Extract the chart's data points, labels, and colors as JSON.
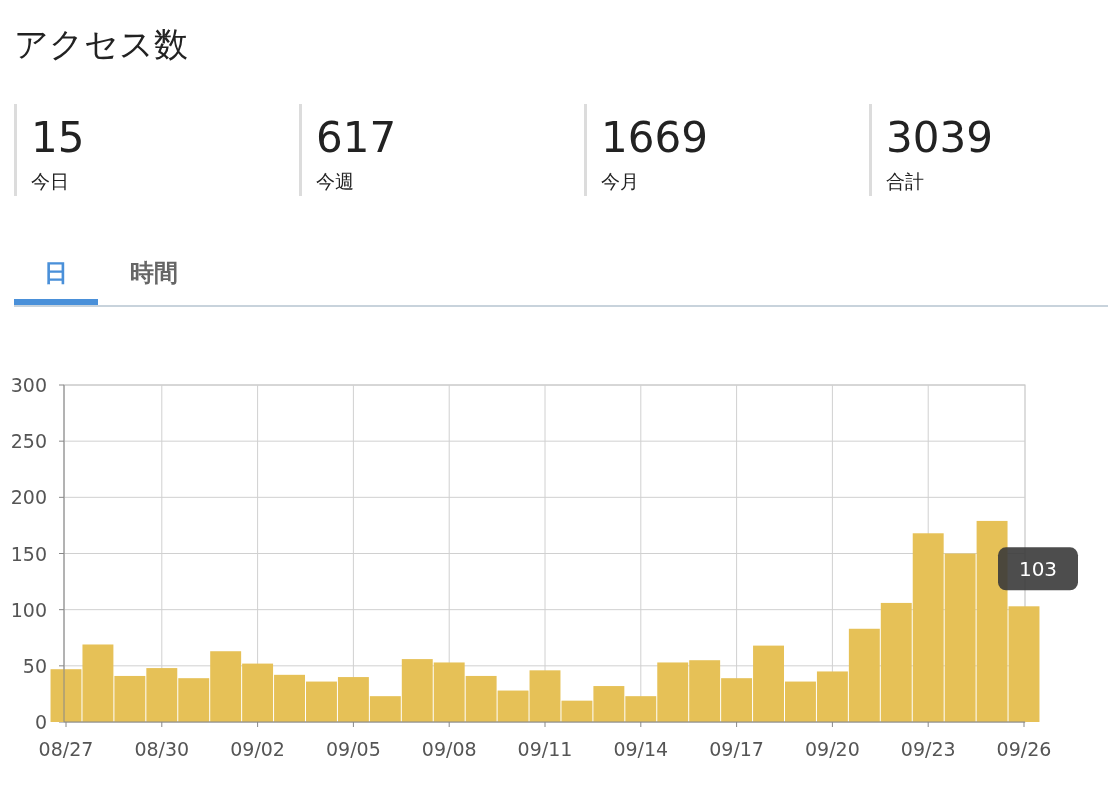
{
  "chart_data": [
    {
      "type": "other",
      "title": "アクセス数",
      "annotations": [
        "15",
        "今日",
        "617",
        "今週",
        "1669",
        "今月",
        "3039",
        "合計"
      ]
    },
    {
      "type": "bar",
      "annotations": [
        "日",
        "時間",
        {
          "text": "103",
          "x": "09/26",
          "y": 103
        }
      ],
      "categories": [
        "08/27",
        null,
        null,
        "08/30",
        null,
        null,
        "09/02",
        null,
        null,
        "09/05",
        null,
        null,
        "09/08",
        null,
        null,
        "09/11",
        null,
        null,
        "09/14",
        null,
        null,
        "09/17",
        null,
        null,
        "09/20",
        null,
        null,
        "09/23",
        null,
        null,
        "09/26"
      ],
      "values": [
        47,
        69,
        41,
        48,
        39,
        63,
        52,
        42,
        36,
        40,
        23,
        56,
        53,
        41,
        28,
        46,
        19,
        32,
        23,
        53,
        55,
        39,
        68,
        36,
        45,
        83,
        106,
        168,
        150,
        179,
        103
      ],
      "color": "#e6c157",
      "ylim": [
        0,
        300
      ],
      "yticks": [
        0,
        50,
        100,
        150,
        200,
        250,
        300
      ],
      "grid": true
    }
  ]
}
